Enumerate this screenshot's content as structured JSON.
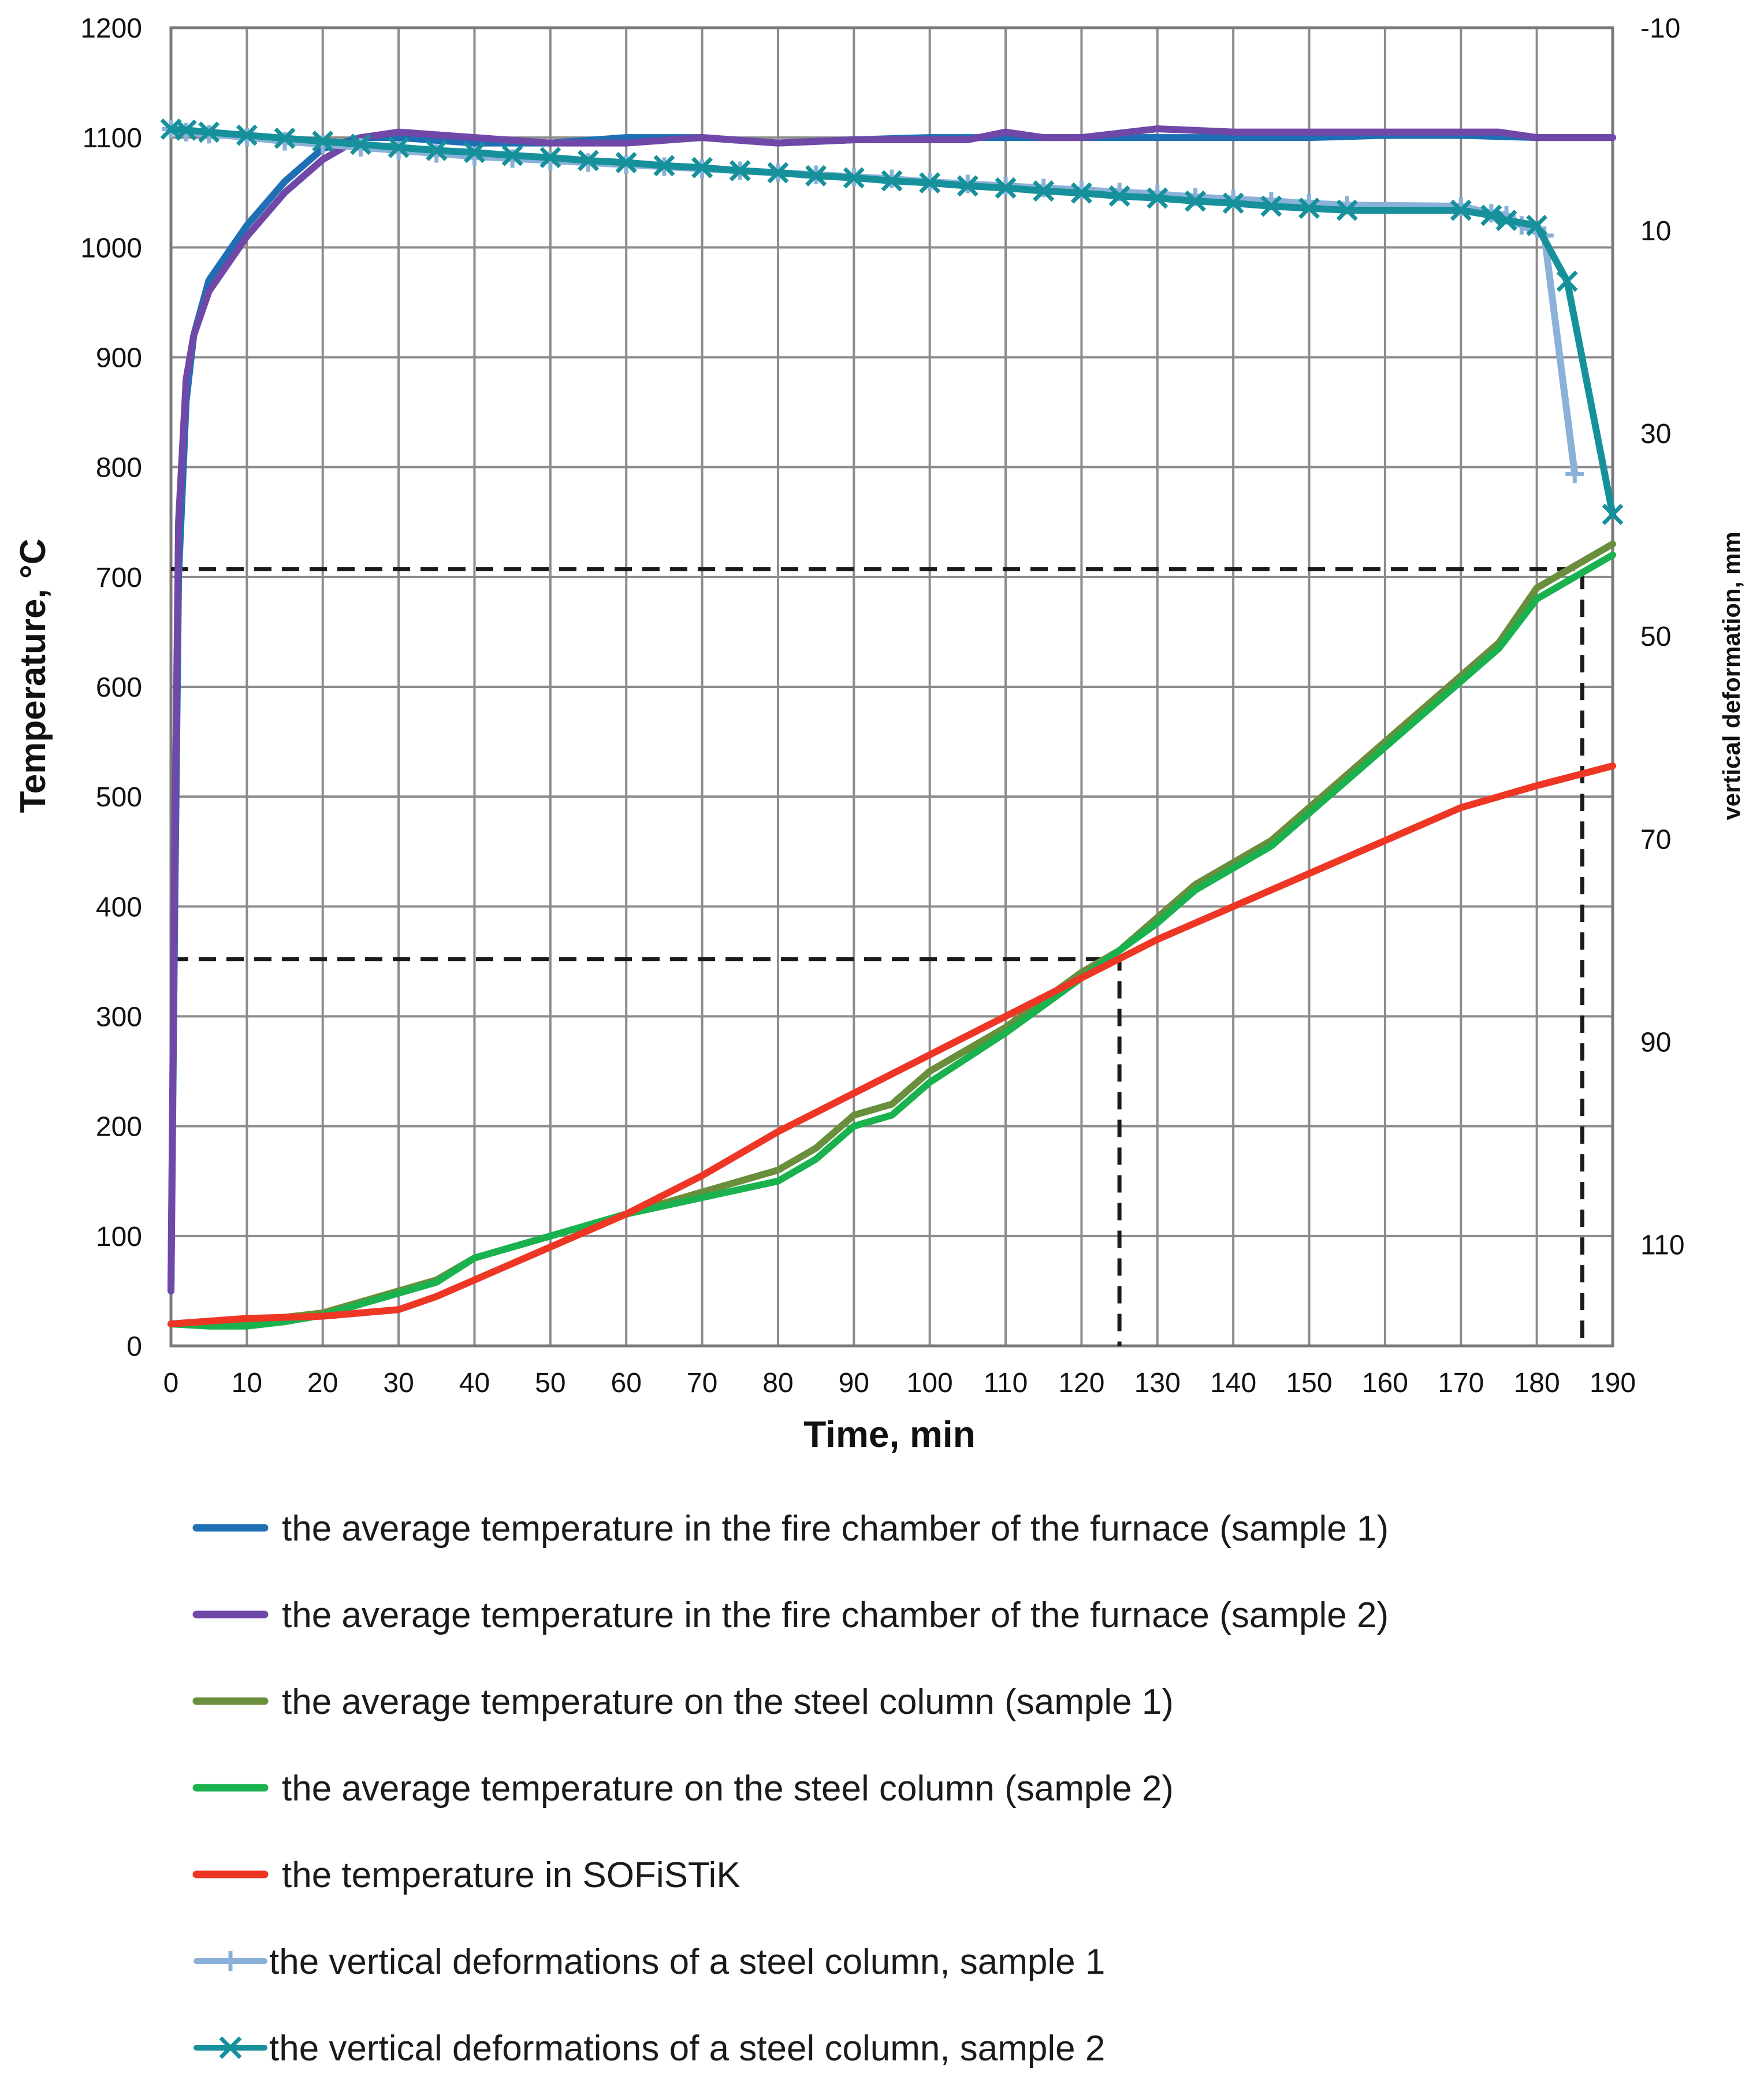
{
  "chart_data": {
    "type": "line",
    "title": "",
    "xlabel": "Time, min",
    "ylabel": "Temperature, °C",
    "y2label": "vertical deformation, mm",
    "xlim": [
      0,
      190
    ],
    "ylim": [
      0,
      1200
    ],
    "y2lim": [
      -10,
      120
    ],
    "grid": true,
    "legend_position": "bottom",
    "x_ticks": [
      "0",
      "10",
      "20",
      "30",
      "40",
      "50",
      "60",
      "70",
      "80",
      "90",
      "100",
      "110",
      "120",
      "130",
      "140",
      "150",
      "160",
      "170",
      "180",
      "190"
    ],
    "y_ticks": [
      "0",
      "100",
      "200",
      "300",
      "400",
      "500",
      "600",
      "700",
      "800",
      "900",
      "1000",
      "1100",
      "1200"
    ],
    "y2_ticks": [
      "-10",
      "10",
      "30",
      "50",
      "70",
      "90",
      "110"
    ],
    "series": [
      {
        "name": "the average temperature in the fire chamber of the furnace (sample 1)",
        "axis": "left",
        "color": "#1f6fb5",
        "marker": "none",
        "x": [
          0,
          0.5,
          1,
          2,
          3,
          5,
          8,
          10,
          15,
          20,
          25,
          30,
          40,
          50,
          60,
          70,
          80,
          90,
          100,
          110,
          120,
          130,
          140,
          150,
          160,
          170,
          180,
          190
        ],
        "y": [
          50,
          400,
          700,
          860,
          920,
          970,
          1000,
          1020,
          1060,
          1090,
          1100,
          1100,
          1095,
          1095,
          1100,
          1100,
          1095,
          1098,
          1100,
          1100,
          1100,
          1100,
          1100,
          1100,
          1102,
          1102,
          1100,
          1100
        ]
      },
      {
        "name": "the average temperature in the fire chamber of the furnace (sample 2)",
        "axis": "left",
        "color": "#7048a8",
        "marker": "none",
        "x": [
          0,
          0.5,
          1,
          2,
          3,
          5,
          8,
          10,
          15,
          20,
          25,
          30,
          40,
          50,
          60,
          70,
          80,
          90,
          100,
          105,
          110,
          115,
          120,
          130,
          140,
          150,
          160,
          170,
          175,
          180,
          185,
          190
        ],
        "y": [
          50,
          450,
          750,
          880,
          920,
          960,
          990,
          1010,
          1050,
          1080,
          1100,
          1105,
          1100,
          1095,
          1095,
          1100,
          1095,
          1098,
          1098,
          1098,
          1105,
          1100,
          1100,
          1108,
          1105,
          1105,
          1105,
          1105,
          1105,
          1100,
          1100,
          1100
        ]
      },
      {
        "name": "the average temperature on the steel column (sample 1)",
        "axis": "left",
        "color": "#6a8f3c",
        "marker": "none",
        "x": [
          0,
          10,
          20,
          30,
          35,
          40,
          50,
          60,
          70,
          80,
          85,
          90,
          95,
          100,
          110,
          120,
          125,
          130,
          135,
          140,
          145,
          150,
          160,
          170,
          175,
          180,
          185,
          190
        ],
        "y": [
          20,
          22,
          30,
          50,
          60,
          80,
          100,
          120,
          140,
          160,
          180,
          210,
          220,
          250,
          290,
          340,
          360,
          390,
          420,
          440,
          460,
          490,
          550,
          610,
          640,
          690,
          710,
          730
        ]
      },
      {
        "name": "the average temperature on the steel column (sample 2)",
        "axis": "left",
        "color": "#19b24f",
        "marker": "none",
        "x": [
          0,
          5,
          10,
          15,
          20,
          30,
          35,
          40,
          50,
          60,
          70,
          80,
          85,
          90,
          95,
          100,
          110,
          120,
          125,
          130,
          135,
          140,
          145,
          150,
          160,
          170,
          175,
          180,
          185,
          190
        ],
        "y": [
          20,
          18,
          18,
          22,
          28,
          48,
          58,
          80,
          100,
          120,
          135,
          150,
          170,
          200,
          210,
          240,
          285,
          335,
          360,
          385,
          415,
          435,
          455,
          485,
          545,
          605,
          635,
          680,
          700,
          720
        ]
      },
      {
        "name": "the temperature in SOFiSTiK",
        "axis": "left",
        "color": "#ee3624",
        "marker": "none",
        "x": [
          0,
          10,
          20,
          30,
          35,
          40,
          50,
          60,
          70,
          80,
          90,
          100,
          110,
          120,
          130,
          140,
          150,
          160,
          170,
          180,
          190
        ],
        "y": [
          20,
          25,
          27,
          33,
          45,
          60,
          90,
          120,
          155,
          195,
          230,
          265,
          300,
          335,
          370,
          400,
          430,
          460,
          490,
          510,
          528
        ]
      },
      {
        "name": "the vertical deformations of a steel column, sample 1",
        "axis": "right",
        "color": "#8ab1d8",
        "marker": "+",
        "x": [
          0,
          2,
          5,
          10,
          15,
          20,
          25,
          30,
          35,
          40,
          45,
          50,
          55,
          60,
          65,
          70,
          75,
          80,
          85,
          90,
          95,
          100,
          105,
          110,
          115,
          120,
          125,
          130,
          135,
          140,
          145,
          150,
          155,
          170,
          174,
          176,
          178,
          181,
          185
        ],
        "y": [
          0,
          0.3,
          0.5,
          0.8,
          1.2,
          1.5,
          1.8,
          2.1,
          2.4,
          2.7,
          2.9,
          3.1,
          3.3,
          3.5,
          3.7,
          3.9,
          4.1,
          4.3,
          4.5,
          4.7,
          4.9,
          5.2,
          5.4,
          5.6,
          5.8,
          6.0,
          6.2,
          6.4,
          6.7,
          6.9,
          7.1,
          7.3,
          7.5,
          7.6,
          8.3,
          8.5,
          9.5,
          10.5,
          34
        ]
      },
      {
        "name": "the vertical deformations of a steel column, sample 2",
        "axis": "right",
        "color": "#16919b",
        "marker": "x",
        "x": [
          0,
          2,
          5,
          10,
          15,
          20,
          25,
          30,
          35,
          40,
          45,
          50,
          55,
          60,
          65,
          70,
          75,
          80,
          85,
          90,
          95,
          100,
          105,
          110,
          115,
          120,
          125,
          130,
          135,
          140,
          145,
          150,
          155,
          170,
          174,
          176,
          180,
          184,
          190
        ],
        "y": [
          0,
          0.1,
          0.3,
          0.6,
          0.9,
          1.2,
          1.5,
          1.8,
          2.1,
          2.3,
          2.6,
          2.8,
          3.1,
          3.3,
          3.6,
          3.8,
          4.1,
          4.3,
          4.6,
          4.8,
          5.1,
          5.3,
          5.6,
          5.8,
          6.1,
          6.3,
          6.6,
          6.8,
          7.1,
          7.3,
          7.6,
          7.8,
          8.0,
          8.0,
          8.5,
          9.0,
          9.5,
          15,
          38
        ]
      }
    ],
    "annotations": [
      {
        "type": "dashed-guide",
        "x": 125,
        "y": 352,
        "color": "#1a1a1a"
      },
      {
        "type": "dashed-guide",
        "x": 186,
        "y": 707,
        "color": "#1a1a1a"
      }
    ]
  }
}
